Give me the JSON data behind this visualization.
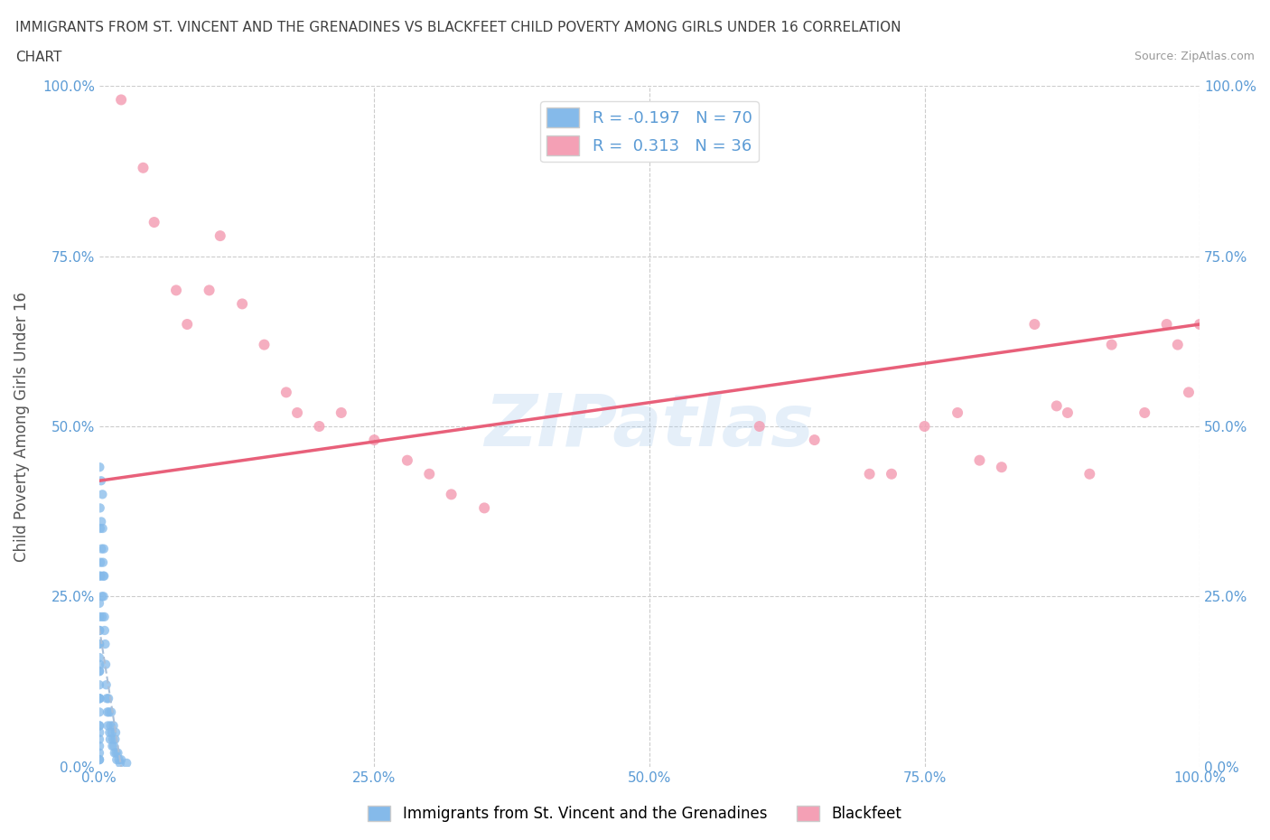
{
  "title_line1": "IMMIGRANTS FROM ST. VINCENT AND THE GRENADINES VS BLACKFEET CHILD POVERTY AMONG GIRLS UNDER 16 CORRELATION",
  "title_line2": "CHART",
  "source": "Source: ZipAtlas.com",
  "ylabel": "Child Poverty Among Girls Under 16",
  "watermark": "ZIPatlas",
  "blue_R": -0.197,
  "blue_N": 70,
  "pink_R": 0.313,
  "pink_N": 36,
  "blue_color": "#85BAEA",
  "pink_color": "#F4A0B5",
  "blue_line_color": "#AABFD8",
  "pink_line_color": "#E8607A",
  "axis_color": "#5B9BD5",
  "title_color": "#404040",
  "blue_scatter": [
    [
      0.05,
      44.0
    ],
    [
      0.08,
      38.0
    ],
    [
      0.1,
      35.0
    ],
    [
      0.12,
      30.0
    ],
    [
      0.15,
      28.0
    ],
    [
      0.18,
      42.0
    ],
    [
      0.2,
      36.0
    ],
    [
      0.22,
      32.0
    ],
    [
      0.25,
      25.0
    ],
    [
      0.28,
      22.0
    ],
    [
      0.3,
      40.0
    ],
    [
      0.32,
      35.0
    ],
    [
      0.35,
      30.0
    ],
    [
      0.38,
      28.0
    ],
    [
      0.4,
      25.0
    ],
    [
      0.42,
      32.0
    ],
    [
      0.45,
      28.0
    ],
    [
      0.48,
      22.0
    ],
    [
      0.5,
      20.0
    ],
    [
      0.55,
      18.0
    ],
    [
      0.6,
      15.0
    ],
    [
      0.65,
      12.0
    ],
    [
      0.7,
      10.0
    ],
    [
      0.75,
      8.0
    ],
    [
      0.8,
      6.0
    ],
    [
      0.85,
      10.0
    ],
    [
      0.9,
      8.0
    ],
    [
      0.95,
      5.0
    ],
    [
      1.0,
      4.0
    ],
    [
      1.05,
      6.0
    ],
    [
      1.1,
      8.0
    ],
    [
      1.15,
      5.0
    ],
    [
      1.2,
      3.0
    ],
    [
      1.25,
      4.0
    ],
    [
      1.3,
      6.0
    ],
    [
      1.35,
      3.0
    ],
    [
      1.4,
      2.0
    ],
    [
      1.45,
      4.0
    ],
    [
      1.5,
      5.0
    ],
    [
      1.55,
      2.0
    ],
    [
      0.02,
      28.0
    ],
    [
      0.02,
      24.0
    ],
    [
      0.02,
      20.0
    ],
    [
      0.02,
      18.0
    ],
    [
      0.02,
      16.0
    ],
    [
      0.02,
      14.0
    ],
    [
      0.02,
      12.0
    ],
    [
      0.02,
      10.0
    ],
    [
      0.02,
      8.0
    ],
    [
      0.02,
      6.0
    ],
    [
      0.02,
      4.0
    ],
    [
      0.02,
      2.0
    ],
    [
      0.02,
      1.0
    ],
    [
      0.03,
      22.0
    ],
    [
      0.03,
      18.0
    ],
    [
      0.03,
      14.0
    ],
    [
      0.03,
      10.0
    ],
    [
      0.03,
      6.0
    ],
    [
      0.03,
      3.0
    ],
    [
      0.03,
      1.0
    ],
    [
      0.04,
      20.0
    ],
    [
      0.04,
      15.0
    ],
    [
      0.04,
      10.0
    ],
    [
      0.04,
      5.0
    ],
    [
      1.6,
      1.0
    ],
    [
      1.7,
      2.0
    ],
    [
      1.8,
      1.0
    ],
    [
      1.9,
      0.5
    ],
    [
      2.0,
      1.0
    ],
    [
      2.5,
      0.5
    ]
  ],
  "pink_scatter": [
    [
      2.0,
      98.0
    ],
    [
      4.0,
      88.0
    ],
    [
      5.0,
      80.0
    ],
    [
      7.0,
      70.0
    ],
    [
      8.0,
      65.0
    ],
    [
      10.0,
      70.0
    ],
    [
      11.0,
      78.0
    ],
    [
      13.0,
      68.0
    ],
    [
      15.0,
      62.0
    ],
    [
      17.0,
      55.0
    ],
    [
      18.0,
      52.0
    ],
    [
      20.0,
      50.0
    ],
    [
      22.0,
      52.0
    ],
    [
      25.0,
      48.0
    ],
    [
      28.0,
      45.0
    ],
    [
      30.0,
      43.0
    ],
    [
      32.0,
      40.0
    ],
    [
      35.0,
      38.0
    ],
    [
      60.0,
      50.0
    ],
    [
      65.0,
      48.0
    ],
    [
      70.0,
      43.0
    ],
    [
      72.0,
      43.0
    ],
    [
      75.0,
      50.0
    ],
    [
      78.0,
      52.0
    ],
    [
      80.0,
      45.0
    ],
    [
      82.0,
      44.0
    ],
    [
      85.0,
      65.0
    ],
    [
      87.0,
      53.0
    ],
    [
      88.0,
      52.0
    ],
    [
      90.0,
      43.0
    ],
    [
      92.0,
      62.0
    ],
    [
      95.0,
      52.0
    ],
    [
      97.0,
      65.0
    ],
    [
      98.0,
      62.0
    ],
    [
      99.0,
      55.0
    ],
    [
      100.0,
      65.0
    ]
  ],
  "xlim": [
    0,
    100
  ],
  "ylim": [
    0,
    100
  ],
  "xticks": [
    0,
    25,
    50,
    75,
    100
  ],
  "yticks": [
    0,
    25,
    50,
    75,
    100
  ],
  "xtick_labels": [
    "0.0%",
    "25.0%",
    "50.0%",
    "75.0%",
    "100.0%"
  ],
  "ytick_labels": [
    "0.0%",
    "25.0%",
    "50.0%",
    "75.0%",
    "100.0%"
  ],
  "legend_label_blue": "Immigrants from St. Vincent and the Grenadines",
  "legend_label_pink": "Blackfeet",
  "tick_fontsize": 11,
  "axis_label_fontsize": 12,
  "pink_line_x": [
    0,
    100
  ],
  "pink_line_y": [
    42,
    65
  ]
}
